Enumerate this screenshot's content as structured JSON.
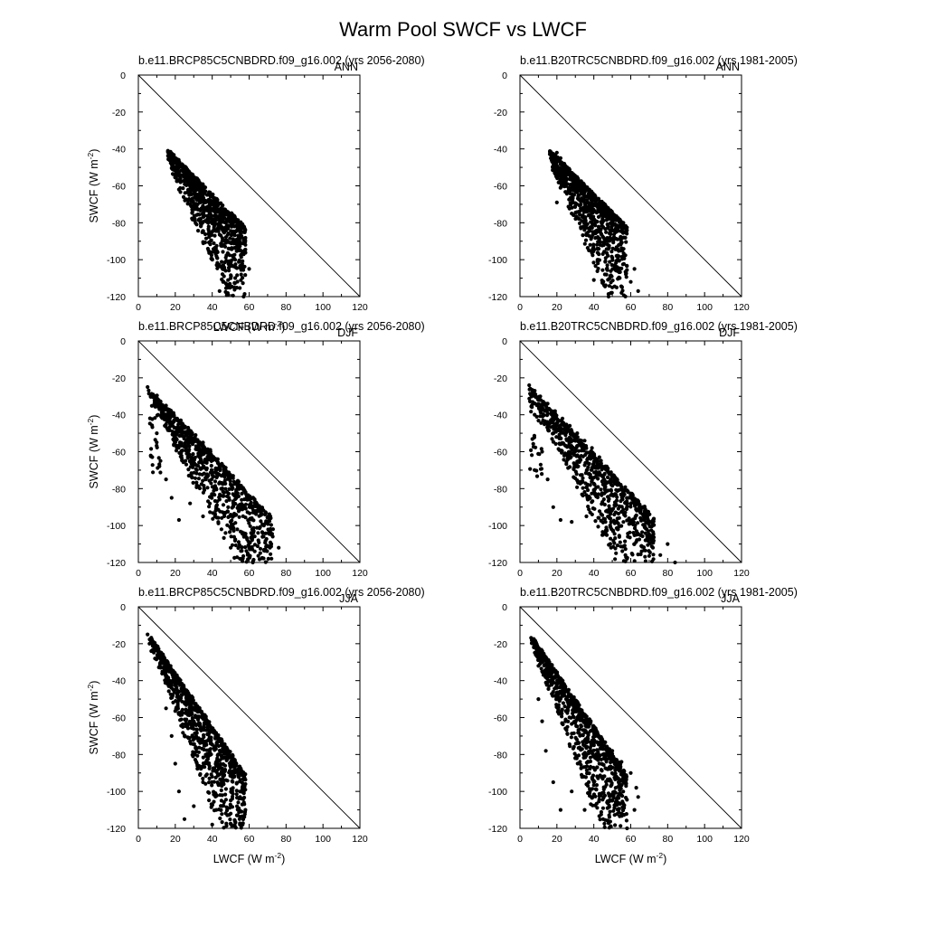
{
  "figure": {
    "title": "Warm Pool SWCF vs LWCF"
  },
  "chart_data": [
    {
      "type": "scatter",
      "title": "b.e11.BRCP85C5CNBDRD.f09_g16.002 (yrs 2056-2080)",
      "season": "ANN",
      "xlabel": "LWCF (W m",
      "ylabel": "SWCF (W m",
      "unit_exp": "-2",
      "xlim": [
        0,
        120
      ],
      "ylim": [
        -120,
        0
      ],
      "xticks": [
        0,
        20,
        40,
        60,
        80,
        100,
        120
      ],
      "yticks": [
        0,
        -20,
        -40,
        -60,
        -80,
        -100,
        -120
      ],
      "reference_line": [
        [
          0,
          0
        ],
        [
          120,
          -120
        ]
      ],
      "shape": "narrow",
      "seed": 11,
      "points": [
        [
          16,
          -41
        ],
        [
          18,
          -44
        ],
        [
          20,
          -47
        ],
        [
          22,
          -50
        ],
        [
          24,
          -52
        ],
        [
          26,
          -55
        ],
        [
          28,
          -57
        ],
        [
          30,
          -60
        ],
        [
          32,
          -62
        ],
        [
          35,
          -65
        ],
        [
          38,
          -68
        ],
        [
          40,
          -70
        ],
        [
          43,
          -73
        ],
        [
          46,
          -76
        ],
        [
          49,
          -79
        ],
        [
          52,
          -82
        ],
        [
          55,
          -85
        ],
        [
          22,
          -62
        ],
        [
          28,
          -70
        ],
        [
          33,
          -78
        ],
        [
          38,
          -86
        ],
        [
          42,
          -94
        ],
        [
          46,
          -103
        ],
        [
          50,
          -110
        ],
        [
          52,
          -115
        ],
        [
          56,
          -104
        ],
        [
          60,
          -105
        ],
        [
          58,
          -92
        ],
        [
          44,
          -117
        ],
        [
          48,
          -119
        ],
        [
          57,
          -120
        ]
      ]
    },
    {
      "type": "scatter",
      "title": "b.e11.B20TRC5CNBDRD.f09_g16.002 (yrs 1981-2005)",
      "season": "ANN",
      "xlabel": "",
      "ylabel": "",
      "unit_exp": "-2",
      "xlim": [
        0,
        120
      ],
      "ylim": [
        -120,
        0
      ],
      "xticks": [
        0,
        20,
        40,
        60,
        80,
        100,
        120
      ],
      "yticks": [
        0,
        -20,
        -40,
        -60,
        -80,
        -100,
        -120
      ],
      "reference_line": [
        [
          0,
          0
        ],
        [
          120,
          -120
        ]
      ],
      "shape": "narrow",
      "seed": 23,
      "points": [
        [
          20,
          -42
        ],
        [
          22,
          -45
        ],
        [
          24,
          -48
        ],
        [
          26,
          -51
        ],
        [
          28,
          -54
        ],
        [
          30,
          -57
        ],
        [
          32,
          -60
        ],
        [
          35,
          -63
        ],
        [
          38,
          -66
        ],
        [
          41,
          -70
        ],
        [
          44,
          -73
        ],
        [
          47,
          -77
        ],
        [
          50,
          -80
        ],
        [
          53,
          -84
        ],
        [
          56,
          -88
        ],
        [
          20,
          -69
        ],
        [
          28,
          -75
        ],
        [
          33,
          -83
        ],
        [
          38,
          -92
        ],
        [
          42,
          -100
        ],
        [
          46,
          -108
        ],
        [
          50,
          -115
        ],
        [
          55,
          -118
        ],
        [
          60,
          -112
        ],
        [
          62,
          -105
        ],
        [
          64,
          -117
        ],
        [
          40,
          -111
        ],
        [
          48,
          -120
        ]
      ]
    },
    {
      "type": "scatter",
      "title": "b.e11.BRCP85C5CNBDRD.f09_g16.002 (yrs 2056-2080)",
      "season": "DJF",
      "xlabel": "",
      "ylabel": "SWCF (W m",
      "unit_exp": "-2",
      "xlim": [
        0,
        120
      ],
      "ylim": [
        -120,
        0
      ],
      "xticks": [
        0,
        20,
        40,
        60,
        80,
        100,
        120
      ],
      "yticks": [
        0,
        -20,
        -40,
        -60,
        -80,
        -100,
        -120
      ],
      "reference_line": [
        [
          0,
          0
        ],
        [
          120,
          -120
        ]
      ],
      "shape": "wide",
      "seed": 37,
      "points": [
        [
          5,
          -25
        ],
        [
          8,
          -29
        ],
        [
          11,
          -32
        ],
        [
          15,
          -35
        ],
        [
          19,
          -39
        ],
        [
          23,
          -43
        ],
        [
          27,
          -47
        ],
        [
          31,
          -51
        ],
        [
          35,
          -55
        ],
        [
          39,
          -59
        ],
        [
          43,
          -64
        ],
        [
          47,
          -69
        ],
        [
          51,
          -74
        ],
        [
          55,
          -80
        ],
        [
          59,
          -86
        ],
        [
          63,
          -93
        ],
        [
          10,
          -50
        ],
        [
          12,
          -65
        ],
        [
          15,
          -75
        ],
        [
          18,
          -85
        ],
        [
          22,
          -97
        ],
        [
          28,
          -88
        ],
        [
          35,
          -95
        ],
        [
          45,
          -102
        ],
        [
          50,
          -112
        ],
        [
          55,
          -118
        ],
        [
          60,
          -112
        ],
        [
          65,
          -108
        ],
        [
          68,
          -100
        ],
        [
          72,
          -110
        ],
        [
          76,
          -112
        ],
        [
          62,
          -120
        ]
      ]
    },
    {
      "type": "scatter",
      "title": "b.e11.B20TRC5CNBDRD.f09_g16.002 (yrs 1981-2005)",
      "season": "DJF",
      "xlabel": "",
      "ylabel": "",
      "unit_exp": "-2",
      "xlim": [
        0,
        120
      ],
      "ylim": [
        -120,
        0
      ],
      "xticks": [
        0,
        20,
        40,
        60,
        80,
        100,
        120
      ],
      "yticks": [
        0,
        -20,
        -40,
        -60,
        -80,
        -100,
        -120
      ],
      "reference_line": [
        [
          0,
          0
        ],
        [
          120,
          -120
        ]
      ],
      "shape": "wide",
      "seed": 41,
      "points": [
        [
          5,
          -24
        ],
        [
          8,
          -27
        ],
        [
          11,
          -30
        ],
        [
          15,
          -34
        ],
        [
          19,
          -38
        ],
        [
          23,
          -42
        ],
        [
          27,
          -46
        ],
        [
          31,
          -50
        ],
        [
          35,
          -54
        ],
        [
          39,
          -58
        ],
        [
          43,
          -63
        ],
        [
          47,
          -68
        ],
        [
          51,
          -73
        ],
        [
          55,
          -79
        ],
        [
          59,
          -85
        ],
        [
          63,
          -91
        ],
        [
          67,
          -97
        ],
        [
          12,
          -60
        ],
        [
          15,
          -75
        ],
        [
          18,
          -90
        ],
        [
          22,
          -97
        ],
        [
          28,
          -98
        ],
        [
          36,
          -95
        ],
        [
          45,
          -105
        ],
        [
          52,
          -115
        ],
        [
          58,
          -118
        ],
        [
          62,
          -110
        ],
        [
          68,
          -108
        ],
        [
          72,
          -112
        ],
        [
          76,
          -116
        ],
        [
          80,
          -110
        ],
        [
          84,
          -120
        ]
      ]
    },
    {
      "type": "scatter",
      "title": "b.e11.BRCP85C5CNBDRD.f09_g16.002 (yrs 2056-2080)",
      "season": "JJA",
      "xlabel": "LWCF (W m",
      "ylabel": "SWCF (W m",
      "unit_exp": "-2",
      "xlim": [
        0,
        120
      ],
      "ylim": [
        -120,
        0
      ],
      "xticks": [
        0,
        20,
        40,
        60,
        80,
        100,
        120
      ],
      "yticks": [
        0,
        -20,
        -40,
        -60,
        -80,
        -100,
        -120
      ],
      "reference_line": [
        [
          0,
          0
        ],
        [
          120,
          -120
        ]
      ],
      "shape": "spread",
      "seed": 53,
      "points": [
        [
          5,
          -15
        ],
        [
          6,
          -20
        ],
        [
          7,
          -24
        ],
        [
          9,
          -28
        ],
        [
          12,
          -33
        ],
        [
          15,
          -38
        ],
        [
          18,
          -44
        ],
        [
          22,
          -50
        ],
        [
          26,
          -56
        ],
        [
          30,
          -62
        ],
        [
          34,
          -67
        ],
        [
          38,
          -72
        ],
        [
          42,
          -77
        ],
        [
          46,
          -82
        ],
        [
          50,
          -87
        ],
        [
          54,
          -91
        ],
        [
          58,
          -96
        ],
        [
          15,
          -55
        ],
        [
          18,
          -70
        ],
        [
          20,
          -85
        ],
        [
          22,
          -100
        ],
        [
          25,
          -115
        ],
        [
          30,
          -108
        ],
        [
          35,
          -95
        ],
        [
          40,
          -118
        ],
        [
          45,
          -105
        ],
        [
          50,
          -112
        ],
        [
          55,
          -118
        ],
        [
          58,
          -110
        ],
        [
          56,
          -100
        ]
      ]
    },
    {
      "type": "scatter",
      "title": "b.e11.B20TRC5CNBDRD.f09_g16.002 (yrs 1981-2005)",
      "season": "JJA",
      "xlabel": "LWCF (W m",
      "ylabel": "",
      "unit_exp": "-2",
      "xlim": [
        0,
        120
      ],
      "ylim": [
        -120,
        0
      ],
      "xticks": [
        0,
        20,
        40,
        60,
        80,
        100,
        120
      ],
      "yticks": [
        0,
        -20,
        -40,
        -60,
        -80,
        -100,
        -120
      ],
      "reference_line": [
        [
          0,
          0
        ],
        [
          120,
          -120
        ]
      ],
      "shape": "spread",
      "seed": 67,
      "points": [
        [
          8,
          -21
        ],
        [
          9,
          -26
        ],
        [
          10,
          -32
        ],
        [
          12,
          -35
        ],
        [
          15,
          -38
        ],
        [
          20,
          -44
        ],
        [
          25,
          -50
        ],
        [
          30,
          -56
        ],
        [
          35,
          -62
        ],
        [
          40,
          -68
        ],
        [
          45,
          -73
        ],
        [
          50,
          -78
        ],
        [
          55,
          -84
        ],
        [
          60,
          -90
        ],
        [
          63,
          -98
        ],
        [
          10,
          -50
        ],
        [
          12,
          -62
        ],
        [
          14,
          -78
        ],
        [
          18,
          -95
        ],
        [
          22,
          -110
        ],
        [
          28,
          -100
        ],
        [
          35,
          -110
        ],
        [
          40,
          -95
        ],
        [
          45,
          -115
        ],
        [
          50,
          -105
        ],
        [
          55,
          -112
        ],
        [
          58,
          -120
        ],
        [
          62,
          -110
        ],
        [
          64,
          -103
        ]
      ]
    }
  ]
}
